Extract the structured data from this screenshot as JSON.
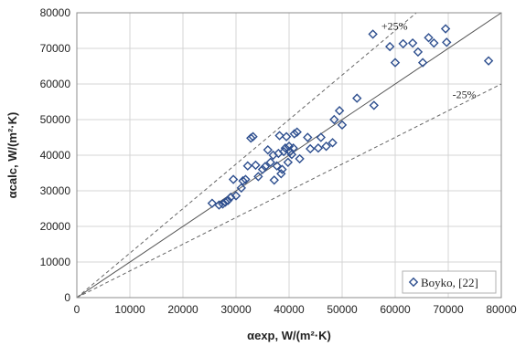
{
  "chart_data": {
    "type": "scatter",
    "xlabel": "αexp, W/(m²·K)",
    "ylabel": "αcalc, W/(m²·K)",
    "xlim": [
      0,
      80000
    ],
    "ylim": [
      0,
      80000
    ],
    "x_ticks": [
      "0",
      "10000",
      "20000",
      "30000",
      "40000",
      "50000",
      "60000",
      "70000",
      "80000"
    ],
    "y_ticks": [
      "0",
      "10000",
      "20000",
      "30000",
      "40000",
      "50000",
      "60000",
      "70000",
      "80000"
    ],
    "grid": true,
    "legend_position": "bottom-right",
    "reference_lines": [
      {
        "label": "",
        "style": "solid",
        "slope": 1.0
      },
      {
        "label": "+25%",
        "style": "dashed",
        "slope": 1.25
      },
      {
        "label": "-25%",
        "style": "dashed",
        "slope": 0.75
      }
    ],
    "series": [
      {
        "name": "Boyko, [22]",
        "marker": "diamond-open",
        "color": "#2e4f8f",
        "points": [
          [
            25500,
            26500
          ],
          [
            26800,
            26000
          ],
          [
            27500,
            26300
          ],
          [
            28000,
            26800
          ],
          [
            28500,
            27300
          ],
          [
            29000,
            28200
          ],
          [
            29500,
            33200
          ],
          [
            30000,
            28600
          ],
          [
            31000,
            30800
          ],
          [
            31300,
            32800
          ],
          [
            31800,
            33200
          ],
          [
            32200,
            37000
          ],
          [
            32800,
            44800
          ],
          [
            33200,
            45200
          ],
          [
            33700,
            37200
          ],
          [
            34200,
            34000
          ],
          [
            35000,
            36000
          ],
          [
            35500,
            36800
          ],
          [
            36000,
            41500
          ],
          [
            36500,
            38000
          ],
          [
            37000,
            40000
          ],
          [
            37200,
            33000
          ],
          [
            37700,
            37000
          ],
          [
            38000,
            40500
          ],
          [
            38200,
            45500
          ],
          [
            38500,
            34800
          ],
          [
            38700,
            36000
          ],
          [
            39000,
            41000
          ],
          [
            39300,
            42000
          ],
          [
            39500,
            45200
          ],
          [
            39800,
            38000
          ],
          [
            40000,
            42500
          ],
          [
            40200,
            41000
          ],
          [
            40500,
            40200
          ],
          [
            40800,
            42000
          ],
          [
            41000,
            46000
          ],
          [
            41500,
            46500
          ],
          [
            42000,
            39000
          ],
          [
            43500,
            45000
          ],
          [
            44000,
            41800
          ],
          [
            45500,
            42000
          ],
          [
            46000,
            45000
          ],
          [
            47000,
            42500
          ],
          [
            48200,
            43500
          ],
          [
            48500,
            50000
          ],
          [
            49500,
            52500
          ],
          [
            50000,
            48500
          ],
          [
            52800,
            56000
          ],
          [
            55800,
            74000
          ],
          [
            56000,
            54000
          ],
          [
            59000,
            70500
          ],
          [
            60000,
            66000
          ],
          [
            61500,
            71300
          ],
          [
            63300,
            71500
          ],
          [
            64300,
            69000
          ],
          [
            65200,
            66000
          ],
          [
            66300,
            73000
          ],
          [
            67300,
            71500
          ],
          [
            69500,
            75500
          ],
          [
            69700,
            71700
          ],
          [
            77600,
            66500
          ]
        ]
      }
    ]
  }
}
